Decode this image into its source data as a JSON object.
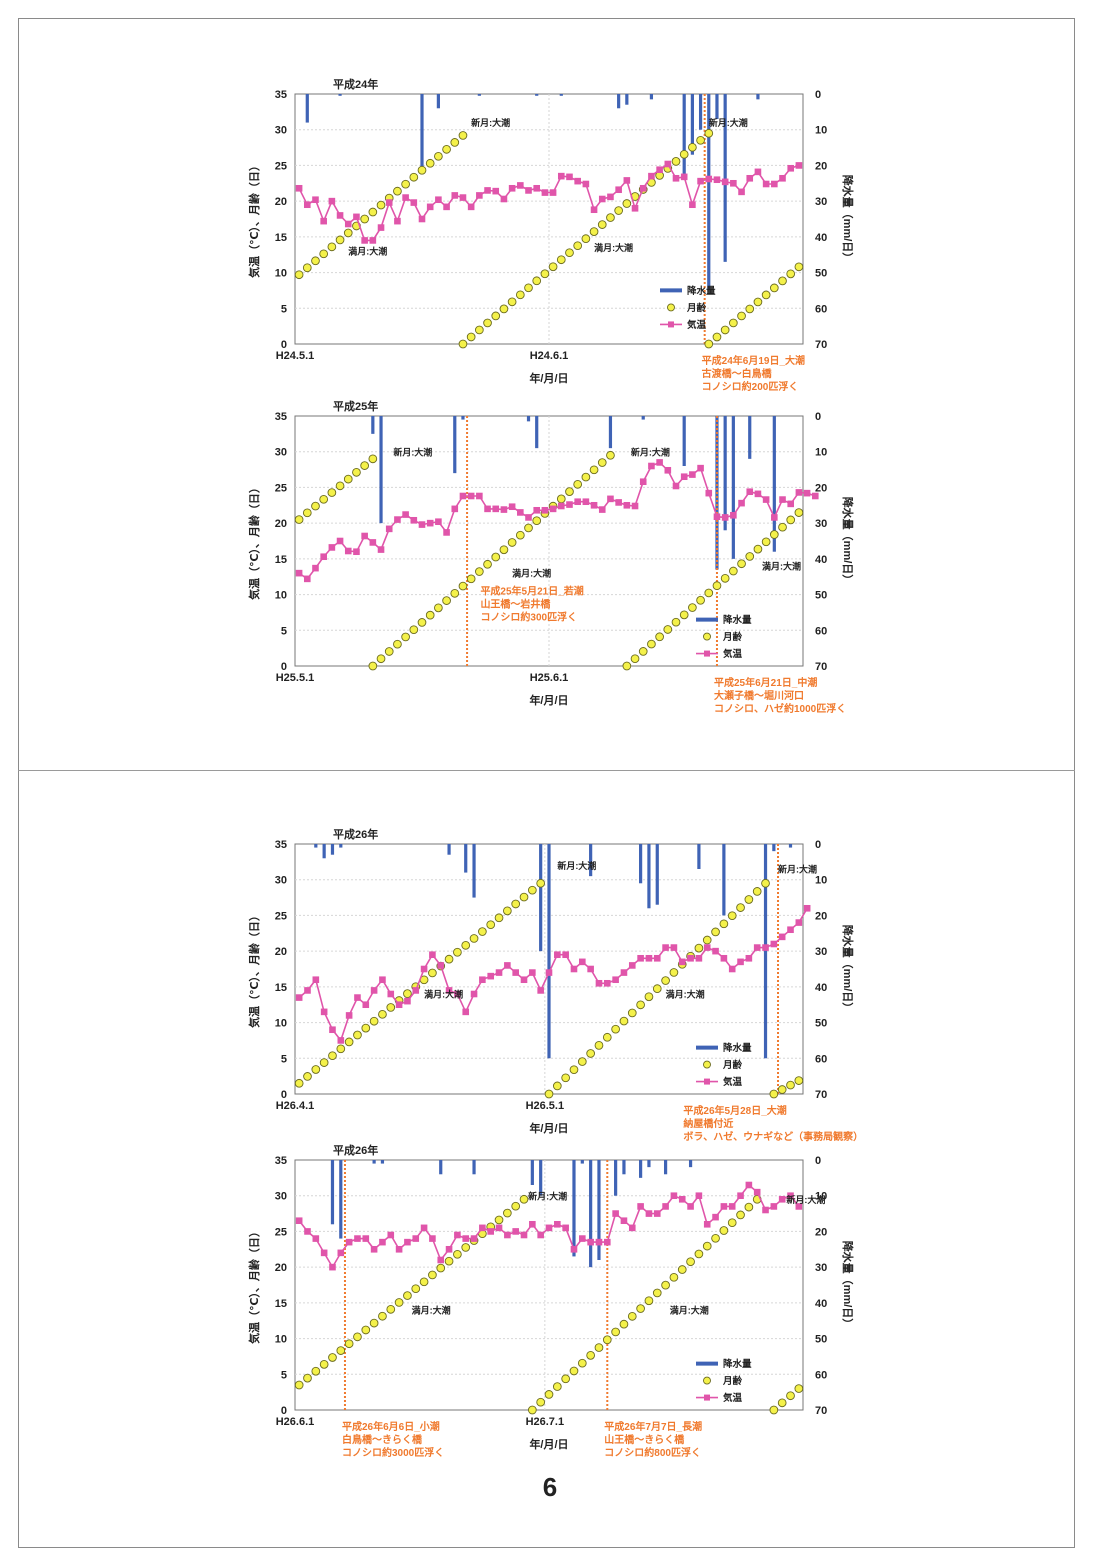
{
  "page": {
    "number": "6"
  },
  "colors": {
    "rain": "#3f63b5",
    "moon": "#f4f14a",
    "moon_edge": "#6b6b1f",
    "temp": "#e055aa",
    "event": "#f07a2e",
    "grid": "#d6d6d6"
  },
  "chart_data": [
    {
      "type": "line",
      "title": "平成24年",
      "xlabel": "年/月/日",
      "ylabel": "気温（℃）、月齢（日）",
      "y2label": "降水量（mm/日）",
      "ylim": [
        0,
        35
      ],
      "y2lim": [
        70,
        0
      ],
      "yticks": [
        "0",
        "5",
        "10",
        "15",
        "20",
        "25",
        "30",
        "35"
      ],
      "y2ticks": [
        "0",
        "10",
        "20",
        "30",
        "40",
        "50",
        "60",
        "70"
      ],
      "xticks": [
        {
          "day": 0,
          "label": "H24.5.1"
        },
        {
          "day": 31,
          "label": "H24.6.1"
        }
      ],
      "days": 62,
      "legend": {
        "rain": "降水量",
        "moon": "月齢",
        "temp": "気温"
      },
      "legend_pos": "middle-right",
      "series": [
        {
          "name": "降水量",
          "kind": "bar",
          "axis": "right",
          "values": [
            [
              1,
              8
            ],
            [
              5,
              0.5
            ],
            [
              15,
              22
            ],
            [
              17,
              4
            ],
            [
              22,
              0.5
            ],
            [
              29,
              0.5
            ],
            [
              32,
              0.5
            ],
            [
              39,
              4
            ],
            [
              40,
              3
            ],
            [
              43,
              1.5
            ],
            [
              47,
              24
            ],
            [
              48,
              17
            ],
            [
              49,
              10
            ],
            [
              50,
              55
            ],
            [
              51,
              7
            ],
            [
              52,
              47
            ],
            [
              56,
              1.5
            ]
          ]
        },
        {
          "name": "月齢",
          "kind": "moon",
          "segments": [
            [
              0,
              9.7,
              20,
              29.2
            ],
            [
              20,
              0,
              50,
              29.5
            ],
            [
              50,
              0,
              61,
              10.8
            ]
          ]
        },
        {
          "name": "気温",
          "kind": "line",
          "values": [
            21.8,
            19.5,
            20.2,
            17.2,
            20,
            18,
            16.8,
            17.8,
            14.5,
            14.5,
            16.3,
            19.8,
            17.2,
            20.5,
            19.8,
            17.5,
            19.2,
            20.2,
            19.2,
            20.8,
            20.5,
            19.2,
            20.8,
            21.5,
            21.4,
            20.3,
            21.8,
            22.2,
            21.5,
            21.8,
            21.2,
            21.2,
            23.5,
            23.4,
            22.8,
            22.4,
            18.8,
            20.3,
            20.6,
            21.6,
            22.9,
            19,
            21.8,
            23.5,
            24.4,
            25.2,
            23.2,
            23.4,
            19.5,
            22.8,
            23.1,
            23,
            22.7,
            22.5,
            21.3,
            23.2,
            24.1,
            22.4,
            22.4,
            23.2,
            24.6,
            25
          ]
        }
      ],
      "annotations": [
        {
          "text": "新月:大潮",
          "day": 21,
          "y": 30.5
        },
        {
          "text": "満月:大潮",
          "day": 6,
          "y": 12.5
        },
        {
          "text": "満月:大潮",
          "day": 36,
          "y": 13
        },
        {
          "text": "新月:大潮",
          "day": 50,
          "y": 30.5
        }
      ],
      "events": [
        {
          "day": 49.5,
          "lines": [
            "平成24年6月19日_大潮",
            "古渡橋～白鳥橋",
            "コノシロ約200匹浮く"
          ]
        }
      ]
    },
    {
      "type": "line",
      "title": "平成25年",
      "xlabel": "年/月/日",
      "ylabel": "気温（℃）、月齢（日）",
      "y2label": "降水量（mm/日）",
      "ylim": [
        0,
        35
      ],
      "y2lim": [
        70,
        0
      ],
      "yticks": [
        "0",
        "5",
        "10",
        "15",
        "20",
        "25",
        "30",
        "35"
      ],
      "y2ticks": [
        "0",
        "10",
        "20",
        "30",
        "40",
        "50",
        "60",
        "70"
      ],
      "xticks": [
        {
          "day": 0,
          "label": "H25.5.1"
        },
        {
          "day": 31,
          "label": "H25.6.1"
        }
      ],
      "days": 62,
      "legend": {
        "rain": "降水量",
        "moon": "月齢",
        "temp": "気温"
      },
      "legend_pos": "bottom-right",
      "series": [
        {
          "name": "降水量",
          "kind": "bar",
          "axis": "right",
          "values": [
            [
              9,
              5
            ],
            [
              10,
              30
            ],
            [
              19,
              16
            ],
            [
              20,
              1
            ],
            [
              28,
              1.5
            ],
            [
              29,
              9
            ],
            [
              38,
              9
            ],
            [
              42,
              1
            ],
            [
              47,
              14
            ],
            [
              51,
              43
            ],
            [
              52,
              32
            ],
            [
              53,
              40
            ],
            [
              55,
              12
            ],
            [
              58,
              38
            ]
          ]
        },
        {
          "name": "月齢",
          "kind": "moon",
          "segments": [
            [
              0,
              20.5,
              9,
              29
            ],
            [
              9,
              0,
              38,
              29.5
            ],
            [
              40,
              0,
              62,
              22.5
            ]
          ]
        },
        {
          "name": "気温",
          "kind": "line",
          "values": [
            13,
            12.2,
            13.7,
            15.3,
            16.6,
            17.5,
            16.1,
            16,
            18.2,
            17.3,
            16.3,
            19.2,
            20.5,
            21.2,
            20.4,
            19.8,
            20,
            20.2,
            18.7,
            22,
            23.8,
            23.8,
            23.8,
            22,
            22,
            21.9,
            22.3,
            21.5,
            20.8,
            21.8,
            21.8,
            22,
            22.4,
            22.6,
            23,
            23,
            22.5,
            21.9,
            23.4,
            22.9,
            22.5,
            22.4,
            25.8,
            28,
            28.5,
            27.4,
            25.2,
            26.5,
            26.8,
            27.7,
            24.2,
            20.9,
            20.8,
            21.1,
            22.8,
            24.4,
            24.1,
            23.3,
            20.8,
            23.3,
            22.7,
            24.3,
            24.2,
            23.8
          ]
        }
      ],
      "annotations": [
        {
          "text": "新月:大潮",
          "day": 11.5,
          "y": 29.5
        },
        {
          "text": "満月:大潮",
          "day": 26,
          "y": 12.5
        },
        {
          "text": "新月:大潮",
          "day": 40.5,
          "y": 29.5
        },
        {
          "text": "満月:大潮",
          "day": 56.5,
          "y": 13.5
        }
      ],
      "events": [
        {
          "day": 20.5,
          "lines": [
            "平成25年5月21日_若潮",
            "山王橋～岩井橋",
            "コノシロ約300匹浮く"
          ],
          "text_day": 22.5,
          "text_y": 10
        },
        {
          "day": 51,
          "lines": [
            "平成25年6月21日_中潮",
            "大瀬子橋～堀川河口",
            "コノシロ、ハゼ約1000匹浮く"
          ]
        }
      ]
    },
    {
      "type": "line",
      "title": "平成26年",
      "xlabel": "年/月/日",
      "ylabel": "気温（℃）、月齢（日）",
      "y2label": "降水量（mm/日）",
      "ylim": [
        0,
        35
      ],
      "y2lim": [
        70,
        0
      ],
      "yticks": [
        "0",
        "5",
        "10",
        "15",
        "20",
        "25",
        "30",
        "35"
      ],
      "y2ticks": [
        "0",
        "10",
        "20",
        "30",
        "40",
        "50",
        "60",
        "70"
      ],
      "xticks": [
        {
          "day": 0,
          "label": "H26.4.1"
        },
        {
          "day": 30,
          "label": "H26.5.1"
        }
      ],
      "days": 61,
      "legend": {
        "rain": "降水量",
        "moon": "月齢",
        "temp": "気温"
      },
      "legend_pos": "bottom-right",
      "series": [
        {
          "name": "降水量",
          "kind": "bar",
          "axis": "right",
          "values": [
            [
              2,
              1
            ],
            [
              3,
              4
            ],
            [
              4,
              3
            ],
            [
              5,
              1
            ],
            [
              18,
              3
            ],
            [
              20,
              8
            ],
            [
              21,
              15
            ],
            [
              29,
              30
            ],
            [
              30,
              60
            ],
            [
              35,
              9
            ],
            [
              41,
              11
            ],
            [
              42,
              18
            ],
            [
              43,
              17
            ],
            [
              48,
              7
            ],
            [
              51,
              20
            ],
            [
              56,
              60
            ],
            [
              57,
              2
            ],
            [
              59,
              1
            ]
          ]
        },
        {
          "name": "月齢",
          "kind": "moon",
          "segments": [
            [
              0,
              1.5,
              29,
              29.5
            ],
            [
              30,
              0,
              56,
              29.5
            ],
            [
              57,
              0,
              61,
              2.5
            ]
          ]
        },
        {
          "name": "気温",
          "kind": "line",
          "values": [
            13.5,
            14.5,
            16,
            11.5,
            9,
            7.5,
            11,
            13.5,
            12.5,
            14.5,
            16,
            14,
            12.5,
            13,
            14.5,
            17.5,
            19.5,
            18,
            14.5,
            14,
            11.5,
            14,
            16,
            16.5,
            17,
            18,
            17,
            16,
            17,
            14.5,
            17,
            19.5,
            19.5,
            17.5,
            18.5,
            17.5,
            15.5,
            15.5,
            16,
            17,
            18,
            19,
            19,
            19,
            20.5,
            20.5,
            18.5,
            19,
            19,
            20.5,
            20,
            19,
            17.5,
            18.5,
            19,
            20.5,
            20.5,
            21,
            22,
            23,
            24,
            26
          ]
        }
      ],
      "annotations": [
        {
          "text": "満月:大潮",
          "day": 15,
          "y": 13.5
        },
        {
          "text": "新月:大潮",
          "day": 31,
          "y": 31.5
        },
        {
          "text": "満月:大潮",
          "day": 44,
          "y": 13.5
        },
        {
          "text": "新月:大潮",
          "day": 57.5,
          "y": 31
        }
      ],
      "events": [
        {
          "day": 57.5,
          "lines": [
            "平成26年5月28日_大潮",
            "納屋橋付近",
            "ボラ、ハゼ、ウナギなど（事務局観察）"
          ],
          "text_day": 46.5
        }
      ]
    },
    {
      "type": "line",
      "title": "平成26年",
      "xlabel": "年/月/日",
      "ylabel": "気温（℃）、月齢（日）",
      "y2label": "降水量（mm/日）",
      "ylim": [
        0,
        35
      ],
      "y2lim": [
        70,
        0
      ],
      "yticks": [
        "0",
        "5",
        "10",
        "15",
        "20",
        "25",
        "30",
        "35"
      ],
      "y2ticks": [
        "0",
        "10",
        "20",
        "30",
        "40",
        "50",
        "60",
        "70"
      ],
      "xticks": [
        {
          "day": 0,
          "label": "H26.6.1"
        },
        {
          "day": 30,
          "label": "H26.7.1"
        }
      ],
      "days": 61,
      "legend": {
        "rain": "降水量",
        "moon": "月齢",
        "temp": "気温"
      },
      "legend_pos": "bottom-right",
      "series": [
        {
          "name": "降水量",
          "kind": "bar",
          "axis": "right",
          "values": [
            [
              4,
              18
            ],
            [
              5,
              22
            ],
            [
              9,
              1
            ],
            [
              10,
              1
            ],
            [
              17,
              4
            ],
            [
              21,
              4
            ],
            [
              28,
              7
            ],
            [
              29,
              10
            ],
            [
              33,
              27
            ],
            [
              34,
              1
            ],
            [
              35,
              30
            ],
            [
              36,
              28
            ],
            [
              38,
              10
            ],
            [
              39,
              4
            ],
            [
              41,
              5
            ],
            [
              42,
              2
            ],
            [
              44,
              4
            ],
            [
              47,
              2
            ]
          ]
        },
        {
          "name": "月齢",
          "kind": "moon",
          "segments": [
            [
              0,
              3.5,
              27,
              29.5
            ],
            [
              28,
              0,
              55,
              29.5
            ],
            [
              57,
              0,
              61,
              4
            ]
          ]
        },
        {
          "name": "気温",
          "kind": "line",
          "values": [
            26.5,
            25,
            24,
            22,
            20,
            22,
            23.5,
            24,
            24,
            22.5,
            23.5,
            24.5,
            22.5,
            23.5,
            24,
            25.5,
            24,
            21,
            22.5,
            24.5,
            24,
            24,
            25.5,
            25,
            25.5,
            24.5,
            25,
            24.5,
            26,
            24.5,
            25.5,
            26,
            25.5,
            22.5,
            24,
            23.5,
            23.5,
            23.5,
            27.5,
            26.5,
            25.5,
            28.5,
            27.5,
            27.5,
            28.5,
            30,
            29.5,
            28.5,
            30,
            26,
            27,
            28.5,
            28.5,
            30,
            31.5,
            30.5,
            28,
            28.5,
            29.5,
            30,
            28.5
          ]
        }
      ],
      "annotations": [
        {
          "text": "新月:大潮",
          "day": 27.5,
          "y": 29.5
        },
        {
          "text": "満月:大潮",
          "day": 13.5,
          "y": 13.5
        },
        {
          "text": "満月:大潮",
          "day": 44.5,
          "y": 13.5
        },
        {
          "text": "新月:大潮",
          "day": 58.5,
          "y": 29
        }
      ],
      "events": [
        {
          "day": 5.5,
          "lines": [
            "平成26年6月6日_小潮",
            "白鳥橋～きらく橋",
            "コノシロ約3000匹浮く"
          ]
        },
        {
          "day": 37,
          "lines": [
            "平成26年7月7日_長潮",
            "山王橋～きらく橋",
            "コノシロ約800匹浮く"
          ]
        }
      ]
    }
  ]
}
